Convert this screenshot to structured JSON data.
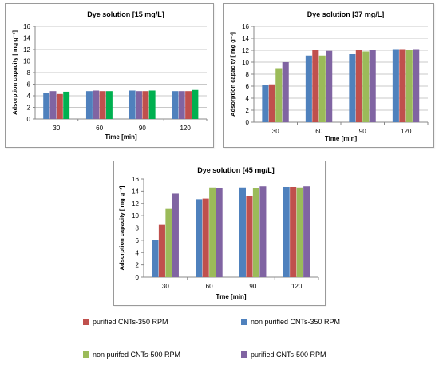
{
  "colors": {
    "blue": "#4f81bd",
    "red": "#c0504d",
    "green": "#9bbb59",
    "purple": "#8064a2",
    "bright_green": "#00b050",
    "grid": "#c8c8c8",
    "axis": "#888888"
  },
  "chart_data": [
    {
      "type": "bar",
      "title": "Dye solution [15 mg/L]",
      "xlabel": "Time [min]",
      "ylabel": "Adsorption capacity [ mg g⁻¹]",
      "ylim": [
        0,
        16
      ],
      "yticks": [
        0,
        2,
        4,
        6,
        8,
        10,
        12,
        14,
        16
      ],
      "grid": true,
      "categories": [
        "30",
        "60",
        "90",
        "120"
      ],
      "series": [
        {
          "values": [
            4.5,
            4.8,
            4.9,
            4.8
          ],
          "color": "#4f81bd"
        },
        {
          "values": [
            4.8,
            4.9,
            4.8,
            4.8
          ],
          "color": "#8064a2"
        },
        {
          "values": [
            4.3,
            4.8,
            4.8,
            4.8
          ],
          "color": "#c0504d"
        },
        {
          "values": [
            4.7,
            4.8,
            4.9,
            5.0
          ],
          "color": "#00b050"
        }
      ]
    },
    {
      "type": "bar",
      "title": "Dye solution [37 mg/L]",
      "xlabel": "Time [min]",
      "ylabel": "Adsorption capacity [ mg g⁻¹]",
      "ylim": [
        0,
        16
      ],
      "yticks": [
        0,
        2,
        4,
        6,
        8,
        10,
        12,
        14,
        16
      ],
      "grid": true,
      "categories": [
        "30",
        "60",
        "90",
        "120"
      ],
      "series": [
        {
          "name": "non purified CNTs-350 RPM",
          "values": [
            6.2,
            11.1,
            11.4,
            12.2
          ],
          "color": "#4f81bd"
        },
        {
          "name": "purified CNTs-350 RPM",
          "values": [
            6.3,
            12.0,
            12.1,
            12.2
          ],
          "color": "#c0504d"
        },
        {
          "name": "non purifed CNTs-500 RPM",
          "values": [
            9.0,
            11.1,
            11.8,
            12.0
          ],
          "color": "#9bbb59"
        },
        {
          "name": "purified CNTs-500 RPM",
          "values": [
            10.0,
            11.9,
            12.0,
            12.2
          ],
          "color": "#8064a2"
        }
      ]
    },
    {
      "type": "bar",
      "title": "Dye solution [45 mg/L]",
      "xlabel": "Tme [min]",
      "ylabel": "Adsorption capacity [ mg g⁻¹]",
      "ylim": [
        0,
        16
      ],
      "yticks": [
        0,
        2,
        4,
        6,
        8,
        10,
        12,
        14,
        16
      ],
      "grid": false,
      "categories": [
        "30",
        "60",
        "90",
        "120"
      ],
      "series": [
        {
          "name": "non purified CNTs-350 RPM",
          "values": [
            6.1,
            12.7,
            14.6,
            14.7
          ],
          "color": "#4f81bd"
        },
        {
          "name": "purified CNTs-350 RPM",
          "values": [
            8.5,
            12.8,
            13.2,
            14.7
          ],
          "color": "#c0504d"
        },
        {
          "name": "non purifed CNTs-500 RPM",
          "values": [
            11.1,
            14.6,
            14.5,
            14.6
          ],
          "color": "#9bbb59"
        },
        {
          "name": "purified CNTs-500 RPM",
          "values": [
            13.6,
            14.5,
            14.8,
            14.8
          ],
          "color": "#8064a2"
        }
      ]
    }
  ],
  "legend": [
    {
      "label": "purified CNTs-350 RPM",
      "color": "#c0504d"
    },
    {
      "label": "non purified CNTs-350 RPM",
      "color": "#4f81bd"
    },
    {
      "label": "non purifed CNTs-500 RPM",
      "color": "#9bbb59"
    },
    {
      "label": "purified CNTs-500 RPM",
      "color": "#8064a2"
    }
  ]
}
